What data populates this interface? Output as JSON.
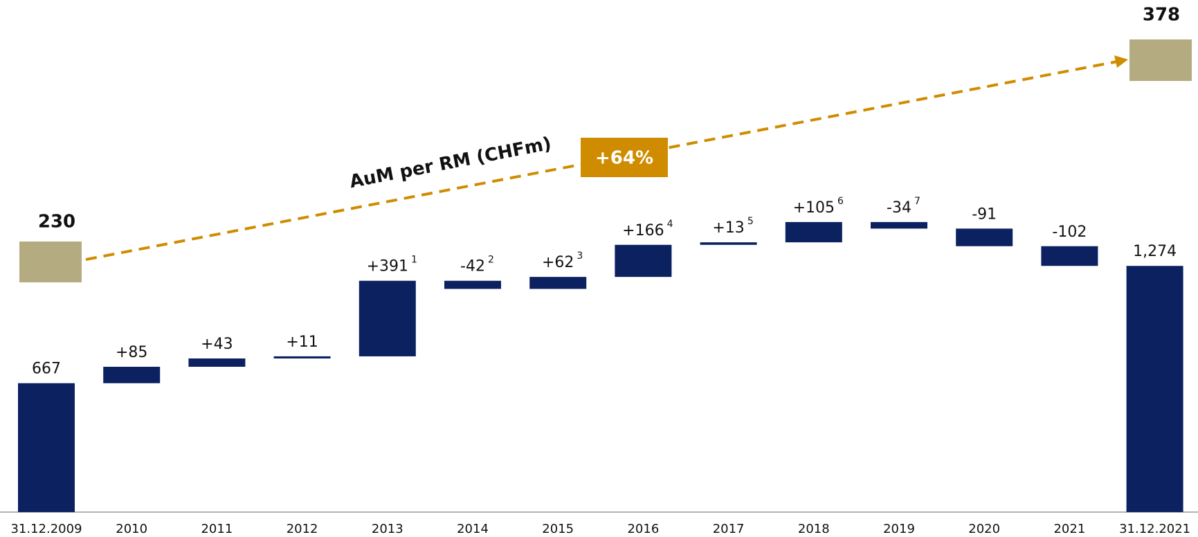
{
  "chart_data": {
    "type": "waterfall",
    "categories": [
      "31.12.2009",
      "2010",
      "2011",
      "2012",
      "2013",
      "2014",
      "2015",
      "2016",
      "2017",
      "2018",
      "2019",
      "2020",
      "2021",
      "31.12.2021"
    ],
    "values": [
      667,
      85,
      43,
      11,
      391,
      -42,
      62,
      166,
      13,
      105,
      -34,
      -91,
      -102,
      1274
    ],
    "value_labels": [
      "667",
      "+85",
      "+43",
      "+11",
      "+391",
      "-42",
      "+62",
      "+166",
      "+13",
      "+105",
      "-34",
      "-91",
      "-102",
      "1,274"
    ],
    "footnotes": [
      null,
      null,
      null,
      null,
      "1",
      "2",
      "3",
      "4",
      "5",
      "6",
      "7",
      null,
      null,
      null
    ],
    "measure": [
      "absolute",
      "relative",
      "relative",
      "relative",
      "relative",
      "relative",
      "relative",
      "relative",
      "relative",
      "relative",
      "relative",
      "relative",
      "relative",
      "absolute"
    ],
    "color": "#0b2160",
    "ylim": [
      0,
      2650
    ],
    "aum_per_rm": {
      "label": "AuM per RM (CHFm)",
      "start": 230,
      "end": 378,
      "change": "+64%",
      "color": "#b4ab80",
      "arrow_color": "#d08c00"
    }
  }
}
